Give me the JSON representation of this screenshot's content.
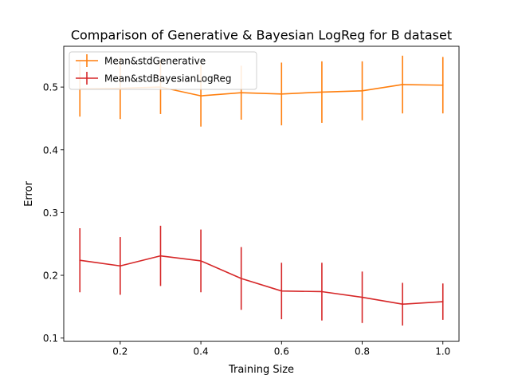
{
  "chart_data": {
    "type": "line",
    "title": "Comparison of Generative & Bayesian LogReg for B dataset",
    "xlabel": "Training Size",
    "ylabel": "Error",
    "xlim": [
      0.06,
      1.04
    ],
    "ylim": [
      0.095,
      0.565
    ],
    "xticks": [
      0.2,
      0.4,
      0.6,
      0.8,
      1.0
    ],
    "xtick_labels": [
      "0.2",
      "0.4",
      "0.6",
      "0.8",
      "1.0"
    ],
    "yticks": [
      0.1,
      0.2,
      0.3,
      0.4,
      0.5
    ],
    "ytick_labels": [
      "0.1",
      "0.2",
      "0.3",
      "0.4",
      "0.5"
    ],
    "grid": false,
    "legend_position": "top-left",
    "x": [
      0.1,
      0.2,
      0.3,
      0.4,
      0.5,
      0.6,
      0.7,
      0.8,
      0.9,
      1.0
    ],
    "series": [
      {
        "name": "Mean&stdGenerative",
        "color": "#ff7f0e",
        "values": [
          0.497,
          0.498,
          0.5,
          0.486,
          0.491,
          0.489,
          0.492,
          0.494,
          0.504,
          0.503
        ],
        "std": [
          0.044,
          0.049,
          0.043,
          0.049,
          0.043,
          0.05,
          0.049,
          0.047,
          0.046,
          0.045
        ]
      },
      {
        "name": "Mean&stdBayesianLogReg",
        "color": "#d62728",
        "values": [
          0.224,
          0.215,
          0.231,
          0.223,
          0.195,
          0.175,
          0.174,
          0.165,
          0.154,
          0.158
        ],
        "std": [
          0.051,
          0.046,
          0.048,
          0.05,
          0.05,
          0.045,
          0.046,
          0.041,
          0.034,
          0.029
        ]
      }
    ]
  }
}
